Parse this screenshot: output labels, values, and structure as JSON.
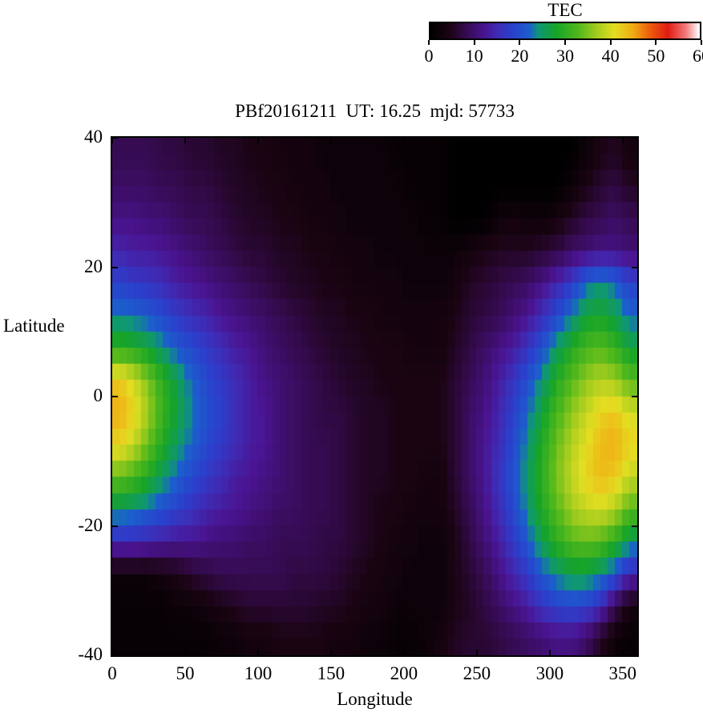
{
  "chart_data": {
    "type": "heatmap",
    "title": "PBf20161211  UT: 16.25  mjd: 57733",
    "xlabel": "Longitude",
    "ylabel": "Latitude",
    "xlim": [
      0,
      360
    ],
    "ylim": [
      -40,
      40
    ],
    "xticks": [
      0,
      50,
      100,
      150,
      200,
      250,
      300,
      350
    ],
    "yticks": [
      40,
      20,
      0,
      -20,
      -40
    ],
    "legend_position": "top-right",
    "grid_lines": false,
    "colorbar": {
      "title": "TEC",
      "min": 0,
      "max": 60,
      "ticks": [
        0,
        10,
        20,
        30,
        40,
        50,
        60
      ],
      "stops": [
        [
          0,
          "#000000"
        ],
        [
          4,
          "#1a0412"
        ],
        [
          8,
          "#360b52"
        ],
        [
          12,
          "#4a1492"
        ],
        [
          15,
          "#3e2cb6"
        ],
        [
          18,
          "#2a40cc"
        ],
        [
          22,
          "#1b5ecc"
        ],
        [
          24,
          "#0f9678"
        ],
        [
          28,
          "#16a428"
        ],
        [
          33,
          "#52b81c"
        ],
        [
          37,
          "#a2cc1e"
        ],
        [
          41,
          "#e4de22"
        ],
        [
          45,
          "#f0ae14"
        ],
        [
          49,
          "#ec5c0c"
        ],
        [
          53,
          "#e01c14"
        ],
        [
          57,
          "#f27a7a"
        ],
        [
          60,
          "#ffffff"
        ]
      ]
    },
    "grid": {
      "lon_start": 0,
      "lon_step": 10,
      "lat_start": 37.5,
      "lat_step": -5,
      "units": "TECU",
      "values": [
        [
          8,
          8,
          8,
          7,
          7,
          6,
          6,
          5,
          5,
          4,
          4,
          3,
          3,
          3,
          2,
          2,
          2,
          2,
          2,
          1,
          1,
          1,
          1,
          0,
          0,
          0,
          0,
          0,
          0,
          0,
          0,
          0,
          2,
          4,
          5,
          3
        ],
        [
          9,
          9,
          9,
          8,
          8,
          7,
          7,
          6,
          5,
          5,
          4,
          4,
          3,
          3,
          3,
          2,
          2,
          2,
          2,
          2,
          1,
          1,
          1,
          0,
          0,
          0,
          0,
          0,
          0,
          0,
          0,
          2,
          4,
          6,
          7,
          5
        ],
        [
          11,
          11,
          10,
          10,
          9,
          8,
          8,
          7,
          6,
          5,
          5,
          4,
          4,
          3,
          3,
          3,
          2,
          2,
          2,
          2,
          2,
          1,
          1,
          0,
          0,
          0,
          2,
          3,
          2,
          2,
          3,
          5,
          7,
          8,
          9,
          8
        ],
        [
          14,
          13,
          13,
          12,
          11,
          10,
          9,
          8,
          7,
          6,
          6,
          5,
          5,
          4,
          4,
          3,
          3,
          3,
          2,
          2,
          2,
          2,
          2,
          2,
          3,
          4,
          5,
          5,
          5,
          6,
          7,
          9,
          10,
          11,
          11,
          10
        ],
        [
          18,
          17,
          16,
          15,
          13,
          12,
          11,
          10,
          9,
          8,
          7,
          6,
          5,
          5,
          4,
          4,
          3,
          3,
          3,
          3,
          2,
          2,
          2,
          3,
          5,
          6,
          7,
          8,
          9,
          11,
          14,
          17,
          22,
          24,
          22,
          18
        ],
        [
          23,
          22,
          21,
          19,
          17,
          15,
          14,
          12,
          11,
          10,
          9,
          8,
          7,
          6,
          5,
          5,
          4,
          4,
          3,
          3,
          3,
          3,
          3,
          4,
          6,
          7,
          8,
          10,
          12,
          15,
          19,
          23,
          27,
          28,
          26,
          22
        ],
        [
          30,
          29,
          27,
          24,
          21,
          19,
          17,
          15,
          13,
          12,
          10,
          9,
          8,
          7,
          6,
          5,
          5,
          4,
          4,
          4,
          3,
          3,
          3,
          5,
          7,
          9,
          11,
          13,
          16,
          20,
          25,
          29,
          32,
          33,
          31,
          27
        ],
        [
          43,
          40,
          35,
          30,
          26,
          22,
          19,
          17,
          15,
          13,
          11,
          10,
          9,
          8,
          7,
          6,
          5,
          5,
          4,
          4,
          4,
          4,
          4,
          6,
          8,
          10,
          13,
          16,
          20,
          24,
          29,
          33,
          36,
          38,
          37,
          33
        ],
        [
          45,
          42,
          37,
          31,
          27,
          23,
          20,
          18,
          15,
          13,
          12,
          10,
          9,
          8,
          7,
          7,
          6,
          5,
          5,
          4,
          4,
          4,
          4,
          6,
          9,
          11,
          14,
          18,
          22,
          27,
          32,
          36,
          39,
          42,
          43,
          40
        ],
        [
          42,
          39,
          34,
          29,
          25,
          22,
          19,
          17,
          15,
          13,
          12,
          10,
          9,
          8,
          8,
          7,
          6,
          5,
          5,
          4,
          4,
          4,
          4,
          6,
          9,
          12,
          15,
          19,
          24,
          29,
          34,
          38,
          41,
          44,
          45,
          42
        ],
        [
          34,
          32,
          29,
          25,
          22,
          19,
          17,
          15,
          13,
          12,
          11,
          10,
          9,
          8,
          8,
          7,
          6,
          5,
          5,
          4,
          4,
          3,
          3,
          6,
          9,
          12,
          16,
          20,
          25,
          30,
          35,
          39,
          42,
          44,
          43,
          39
        ],
        [
          25,
          24,
          22,
          20,
          18,
          16,
          14,
          13,
          12,
          11,
          10,
          9,
          9,
          8,
          8,
          7,
          6,
          5,
          4,
          4,
          3,
          3,
          3,
          5,
          8,
          11,
          15,
          19,
          24,
          29,
          33,
          37,
          39,
          40,
          38,
          33
        ],
        [
          15,
          15,
          14,
          13,
          12,
          12,
          11,
          10,
          10,
          9,
          9,
          8,
          8,
          8,
          7,
          7,
          6,
          5,
          4,
          3,
          3,
          2,
          2,
          4,
          7,
          10,
          13,
          17,
          21,
          26,
          30,
          33,
          34,
          33,
          30,
          25
        ],
        [
          2,
          2,
          2,
          3,
          4,
          6,
          7,
          8,
          8,
          8,
          8,
          8,
          7,
          7,
          7,
          6,
          5,
          4,
          3,
          3,
          2,
          2,
          2,
          4,
          6,
          8,
          11,
          14,
          17,
          21,
          24,
          26,
          26,
          24,
          20,
          14
        ],
        [
          1,
          1,
          1,
          1,
          2,
          2,
          3,
          4,
          5,
          6,
          6,
          6,
          6,
          6,
          5,
          5,
          4,
          3,
          3,
          2,
          2,
          2,
          2,
          4,
          5,
          7,
          9,
          11,
          13,
          16,
          18,
          19,
          18,
          15,
          8,
          3
        ],
        [
          1,
          1,
          1,
          1,
          1,
          1,
          1,
          2,
          2,
          3,
          3,
          4,
          4,
          4,
          4,
          3,
          3,
          2,
          2,
          1,
          1,
          2,
          3,
          5,
          6,
          6,
          7,
          8,
          9,
          10,
          11,
          11,
          9,
          5,
          2,
          1
        ]
      ]
    }
  }
}
